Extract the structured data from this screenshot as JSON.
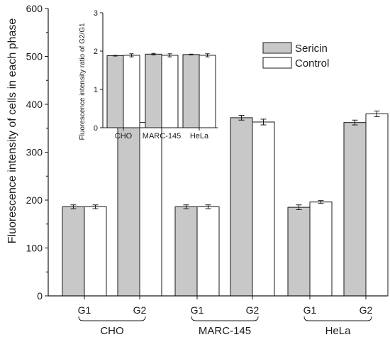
{
  "chart_data": [
    {
      "type": "bar",
      "ylabel": "Fluorescence intensity of cells in each phase",
      "ylim": [
        0,
        600
      ],
      "yticks": [
        0,
        100,
        200,
        300,
        400,
        500,
        600
      ],
      "categories": [
        "G1",
        "G2",
        "G1",
        "G2",
        "G1",
        "G2"
      ],
      "groups": [
        "CHO",
        "MARC-145",
        "HeLa"
      ],
      "series": [
        {
          "name": "Sericin",
          "values": [
            186,
            362,
            186,
            372,
            185,
            362
          ],
          "errors": [
            4,
            5,
            4,
            5,
            5,
            5
          ]
        },
        {
          "name": "Control",
          "values": [
            186,
            362,
            186,
            363,
            196,
            380
          ],
          "errors": [
            4,
            6,
            4,
            6,
            3,
            6
          ]
        }
      ],
      "legend": "top-right",
      "colors": {
        "Sericin": "#c8c8c8",
        "Control": "#ffffff",
        "edge": "#1a1a1a"
      }
    },
    {
      "type": "bar",
      "placement": "inset",
      "ylabel": "Fluorescence intensity ratio of G2/G1",
      "ylim": [
        0,
        3
      ],
      "yticks": [
        0,
        1,
        2,
        3
      ],
      "categories": [
        "CHO",
        "MARC-145",
        "HeLa"
      ],
      "series": [
        {
          "name": "Sericin",
          "values": [
            1.88,
            1.92,
            1.91
          ],
          "errors": [
            0.01,
            0.02,
            0.01
          ]
        },
        {
          "name": "Control",
          "values": [
            1.89,
            1.89,
            1.89
          ],
          "errors": [
            0.04,
            0.04,
            0.04
          ]
        }
      ]
    }
  ]
}
